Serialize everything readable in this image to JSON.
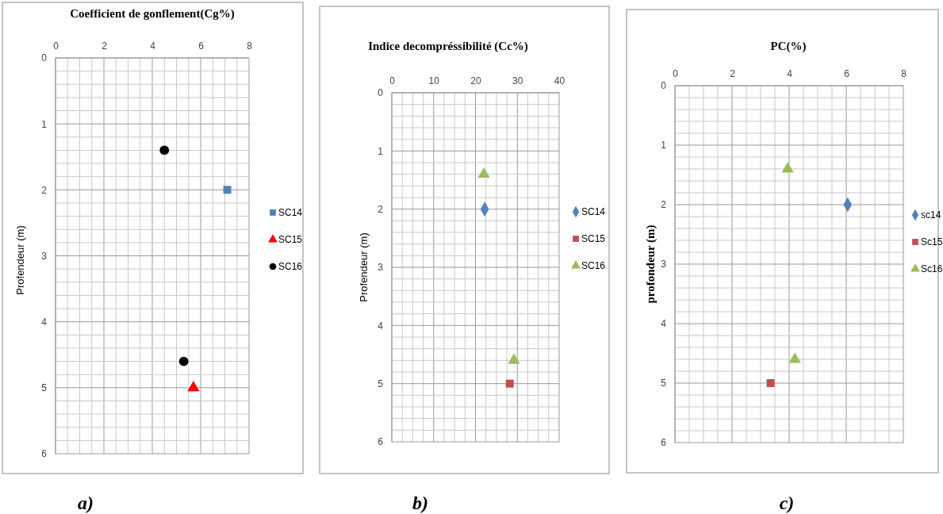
{
  "chart_data": [
    {
      "type": "scatter",
      "title": "Coefficient de gonflement(Cg%)",
      "ylabel": "Profendeur (m)",
      "xlim": [
        0,
        8
      ],
      "xticks": [
        0,
        2,
        4,
        6,
        8
      ],
      "ylim": [
        6,
        0
      ],
      "yticks": [
        0,
        1,
        2,
        3,
        4,
        5,
        6
      ],
      "grid": true,
      "legend": "right",
      "annotations": [
        "a)"
      ],
      "series": [
        {
          "name": "SC14",
          "color": "#4f81bd",
          "marker": "square",
          "x": [
            7.1
          ],
          "values": [
            2.0
          ]
        },
        {
          "name": "SC15",
          "color": "#ff0000",
          "marker": "triangle",
          "x": [
            5.7
          ],
          "values": [
            5.0
          ]
        },
        {
          "name": "SC16",
          "color": "#000000",
          "marker": "circle",
          "x": [
            4.5,
            5.3
          ],
          "values": [
            1.4,
            4.6
          ]
        }
      ]
    },
    {
      "type": "scatter",
      "title": "Indice decompréssibilité (Cc%)",
      "ylabel": "Profendeur (m)",
      "xlim": [
        0,
        40
      ],
      "xticks": [
        0,
        10,
        20,
        30,
        40
      ],
      "ylim": [
        6,
        0
      ],
      "yticks": [
        0,
        1,
        2,
        3,
        4,
        5,
        6
      ],
      "grid": true,
      "legend": "right",
      "annotations": [
        "b)"
      ],
      "series": [
        {
          "name": "SC14",
          "color": "#4f81bd",
          "marker": "diamond",
          "x": [
            22.2
          ],
          "values": [
            2.0
          ]
        },
        {
          "name": "SC15",
          "color": "#c0504d",
          "marker": "square",
          "x": [
            28.2
          ],
          "values": [
            5.0
          ]
        },
        {
          "name": "SC16",
          "color": "#9bbb59",
          "marker": "triangle",
          "x": [
            22,
            29.2
          ],
          "values": [
            1.4,
            4.6
          ]
        }
      ]
    },
    {
      "type": "scatter",
      "title": "PC(%)",
      "ylabel": "profondeur (m)",
      "xlim": [
        0,
        8
      ],
      "xticks": [
        0,
        2,
        4,
        6,
        8
      ],
      "ylim": [
        6,
        0
      ],
      "yticks": [
        0,
        1,
        2,
        3,
        4,
        5,
        6
      ],
      "grid": true,
      "legend": "right",
      "annotations": [
        "c)"
      ],
      "series": [
        {
          "name": "sc14",
          "color": "#4f81bd",
          "marker": "diamond",
          "x": [
            6.05
          ],
          "values": [
            2.0
          ]
        },
        {
          "name": "Sc15",
          "color": "#c0504d",
          "marker": "square",
          "x": [
            3.35
          ],
          "values": [
            5.0
          ]
        },
        {
          "name": "Sc16",
          "color": "#9bbb59",
          "marker": "triangle",
          "x": [
            3.95,
            4.2
          ],
          "values": [
            1.4,
            4.6
          ]
        }
      ]
    }
  ]
}
